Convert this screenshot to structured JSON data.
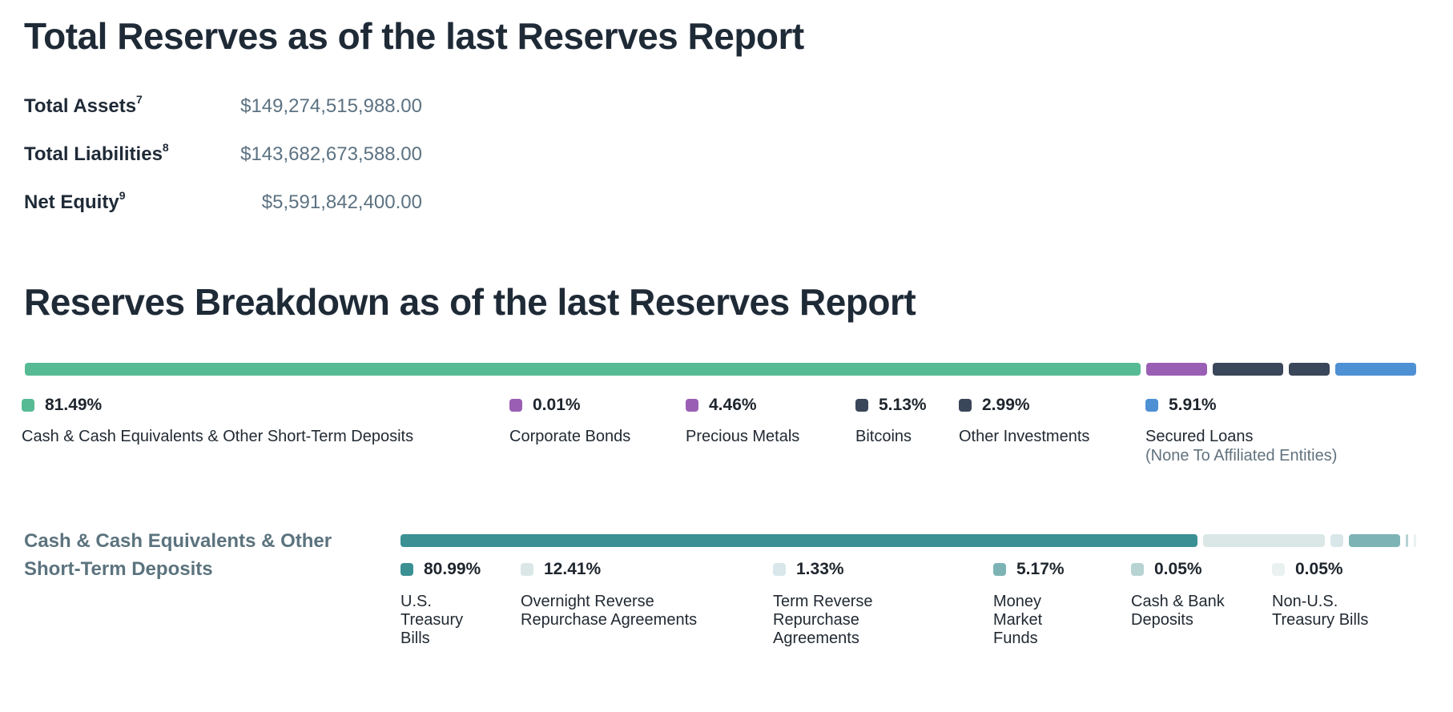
{
  "totals": {
    "heading": "Total Reserves as of the last Reserves Report",
    "rows": [
      {
        "label": "Total Assets",
        "sup": "7",
        "value": "$149,274,515,988.00"
      },
      {
        "label": "Total Liabilities",
        "sup": "8",
        "value": "$143,682,673,588.00"
      },
      {
        "label": "Net Equity",
        "sup": "9",
        "value": "$5,591,842,400.00"
      }
    ]
  },
  "breakdown": {
    "heading": "Reserves Breakdown as of the last Reserves Report",
    "items": [
      {
        "pct": "81.49%",
        "value": 81.49,
        "label": "Cash & Cash Equivalents & Other Short-Term Deposits",
        "color": "#56BB95",
        "in_bar": true
      },
      {
        "pct": "0.01%",
        "value": 0.01,
        "label": "Corporate Bonds",
        "color": "#9A5FB4",
        "in_bar": false
      },
      {
        "pct": "4.46%",
        "value": 4.46,
        "label": "Precious Metals",
        "color": "#9A5FB4",
        "in_bar": true
      },
      {
        "pct": "5.13%",
        "value": 5.13,
        "label": "Bitcoins",
        "color": "#3A4659",
        "in_bar": true
      },
      {
        "pct": "2.99%",
        "value": 2.99,
        "label": "Other Investments",
        "color": "#3A4659",
        "in_bar": true
      },
      {
        "pct": "5.91%",
        "value": 5.91,
        "label": "Secured Loans",
        "sublabel": "(None To Affiliated Entities)",
        "color": "#4E90D4",
        "in_bar": true
      }
    ]
  },
  "cash_breakdown": {
    "section_label": "Cash & Cash Equivalents & Other Short-Term Deposits",
    "items": [
      {
        "pct": "80.99%",
        "value": 80.99,
        "label": "U.S. Treasury Bills",
        "color": "#3A9093",
        "in_bar": true
      },
      {
        "pct": "12.41%",
        "value": 12.41,
        "label": "Overnight Reverse Repurchase Agreements",
        "color": "#DAE7E6",
        "in_bar": true
      },
      {
        "pct": "1.33%",
        "value": 1.33,
        "label": "Term Reverse Repurchase Agreements",
        "color": "#D9E7EA",
        "in_bar": true
      },
      {
        "pct": "5.17%",
        "value": 5.17,
        "label": "Money Market Funds",
        "color": "#7DB3B5",
        "in_bar": true
      },
      {
        "pct": "0.05%",
        "value": 0.05,
        "label": "Cash & Bank Deposits",
        "color": "#B7D3D3",
        "in_bar": true
      },
      {
        "pct": "0.05%",
        "value": 0.05,
        "label": "Non-U.S. Treasury Bills",
        "color": "#E9F1F1",
        "in_bar": true
      }
    ]
  },
  "chart_data": [
    {
      "type": "bar",
      "variant": "horizontal-stacked",
      "title": "Reserves Breakdown as of the last Reserves Report",
      "categories": [
        "Cash & Cash Equivalents & Other Short-Term Deposits",
        "Corporate Bonds",
        "Precious Metals",
        "Bitcoins",
        "Other Investments",
        "Secured Loans (None To Affiliated Entities)"
      ],
      "values": [
        81.49,
        0.01,
        4.46,
        5.13,
        2.99,
        5.91
      ],
      "colors": [
        "#56BB95",
        "#9A5FB4",
        "#9A5FB4",
        "#3A4659",
        "#3A4659",
        "#4E90D4"
      ],
      "unit": "%",
      "xlim": [
        0,
        100
      ],
      "legend_position": "below",
      "grid": false
    },
    {
      "type": "bar",
      "variant": "horizontal-stacked",
      "title": "Cash & Cash Equivalents & Other Short-Term Deposits",
      "categories": [
        "U.S. Treasury Bills",
        "Overnight Reverse Repurchase Agreements",
        "Term Reverse Repurchase Agreements",
        "Money Market Funds",
        "Cash & Bank Deposits",
        "Non-U.S. Treasury Bills"
      ],
      "values": [
        80.99,
        12.41,
        1.33,
        5.17,
        0.05,
        0.05
      ],
      "colors": [
        "#3A9093",
        "#DAE7E6",
        "#D9E7EA",
        "#7DB3B5",
        "#B7D3D3",
        "#E9F1F1"
      ],
      "unit": "%",
      "xlim": [
        0,
        100
      ],
      "legend_position": "below",
      "grid": false
    }
  ]
}
